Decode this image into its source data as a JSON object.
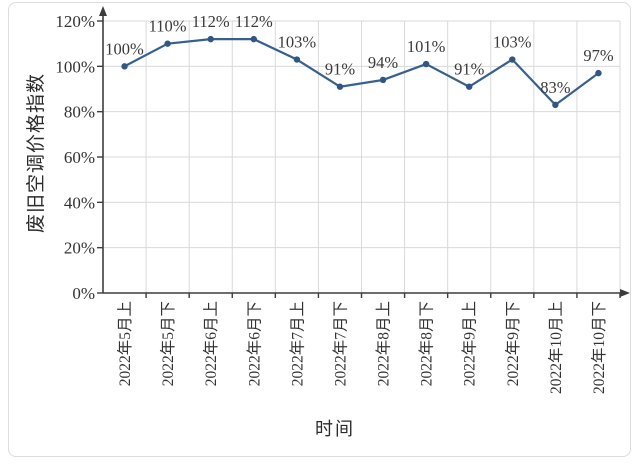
{
  "chart_data": {
    "type": "line",
    "title": "",
    "xlabel": "时间",
    "ylabel": "废旧空调价格指数",
    "categories": [
      "2022年5月上",
      "2022年5月下",
      "2022年6月上",
      "2022年6月下",
      "2022年7月上",
      "2022年7月下",
      "2022年8月上",
      "2022年8月下",
      "2022年9月上",
      "2022年9月下",
      "2022年10月上",
      "2022年10月下"
    ],
    "values": [
      100,
      110,
      112,
      112,
      103,
      91,
      94,
      101,
      91,
      103,
      83,
      97
    ],
    "point_labels": [
      "100%",
      "110%",
      "112%",
      "112%",
      "103%",
      "91%",
      "94%",
      "101%",
      "91%",
      "103%",
      "83%",
      "97%"
    ],
    "ytick_values": [
      0,
      20,
      40,
      60,
      80,
      100,
      120
    ],
    "ytick_labels": [
      "0%",
      "20%",
      "40%",
      "60%",
      "80%",
      "100%",
      "120%"
    ],
    "ylim": [
      0,
      120
    ],
    "grid": true,
    "legend_position": "none",
    "colors": {
      "line": "#36608f",
      "marker": "#2f5685",
      "grid": "#d9d9d9",
      "axis": "#3d3d3d",
      "tick_text": "#333333",
      "data_label_text": "#3a3a3a"
    }
  }
}
